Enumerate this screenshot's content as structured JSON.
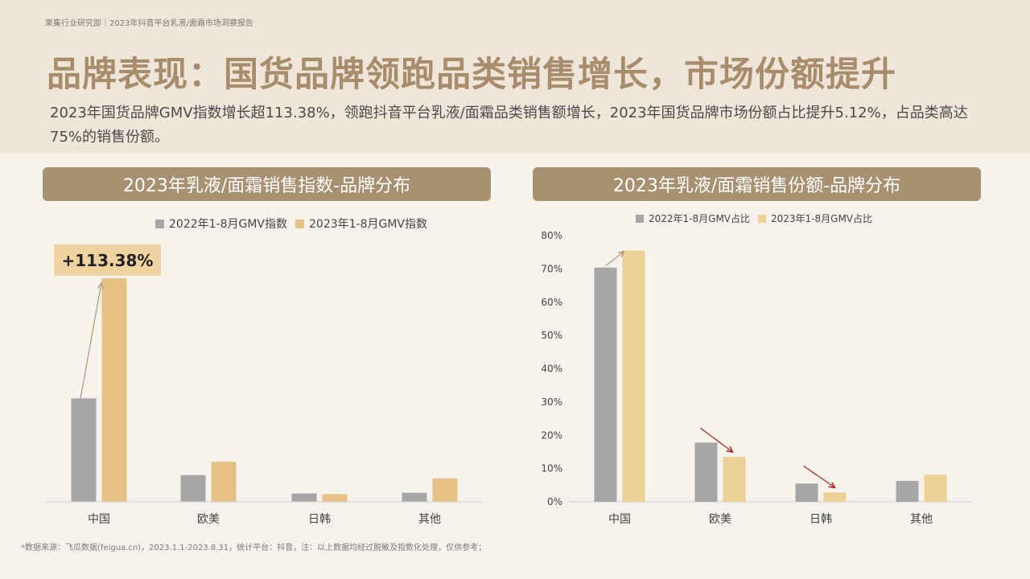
{
  "header": {
    "breadcrumb": "果集行业研究部｜2023年抖音平台乳液/面霜市场洞察报告",
    "title": "品牌表现：国货品牌领跑品类销售增长，市场份额提升",
    "subtitle": "2023年国货品牌GMV指数增长超113.38%，领跑抖音平台乳液/面霜品类销售额增长，2023年国货品牌市场份额占比提升5.12%，占品类高达75%的销售份额。"
  },
  "colors": {
    "series_2022": "#a6a6a6",
    "series_2023_left": "#e6c185",
    "series_2023_right": "#ecd095",
    "header_bg": "#a79170",
    "title": "#a88d6d",
    "arrow_up": "#b39474",
    "arrow_down": "#a3241f"
  },
  "left_panel": {
    "header": "2023年乳液/面霜销售指数-品牌分布",
    "badge": "+113.38%"
  },
  "right_panel": {
    "header": "2023年乳液/面霜销售份额-品牌分布"
  },
  "chart_data": [
    {
      "type": "bar",
      "title": "2023年乳液/面霜销售指数-品牌分布",
      "categories": [
        "中国",
        "欧美",
        "日韩",
        "其他"
      ],
      "series": [
        {
          "name": "2022年1-8月GMV指数",
          "values": [
            31,
            8,
            2.5,
            2.7
          ]
        },
        {
          "name": "2023年1-8月GMV指数",
          "values": [
            67,
            12,
            2.3,
            7
          ]
        }
      ],
      "ylim": [
        0,
        75
      ],
      "y_axis_shown": false,
      "annotations": [
        "+113.38%"
      ],
      "legend": "top-center"
    },
    {
      "type": "bar",
      "title": "2023年乳液/面霜销售份额-品牌分布",
      "categories": [
        "中国",
        "欧美",
        "日韩",
        "其他"
      ],
      "series": [
        {
          "name": "2022年1-8月GMV占比",
          "values": [
            70.4,
            17.8,
            5.5,
            6.3
          ]
        },
        {
          "name": "2023年1-8月GMV占比",
          "values": [
            75.5,
            13.5,
            2.8,
            8.2
          ]
        }
      ],
      "yticks": [
        "0%",
        "10%",
        "20%",
        "30%",
        "40%",
        "50%",
        "60%",
        "70%",
        "80%"
      ],
      "ylim": [
        0,
        80
      ],
      "legend": "top-center"
    }
  ],
  "footnote": "*数据来源：飞瓜数据(feigua.cn)，2023.1.1-2023.8.31，统计平台：抖音，注：以上数据均经过脱敏及指数化处理，仅供参考；"
}
